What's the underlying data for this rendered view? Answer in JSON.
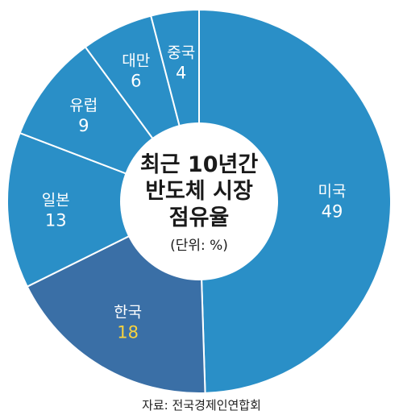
{
  "chart_data": {
    "type": "pie",
    "center_title": [
      "최근 10년간",
      "반도체 시장",
      "점유율"
    ],
    "center_unit": "(단위: %)",
    "slices": [
      {
        "label": "미국",
        "value": 49,
        "color": "#2a8fc7",
        "value_color": "#ffffff"
      },
      {
        "label": "한국",
        "value": 18,
        "color": "#3a6fa6",
        "value_color": "#f7d23e"
      },
      {
        "label": "일본",
        "value": 13,
        "color": "#2a8fc7",
        "value_color": "#ffffff"
      },
      {
        "label": "유럽",
        "value": 9,
        "color": "#2a8fc7",
        "value_color": "#ffffff"
      },
      {
        "label": "대만",
        "value": 6,
        "color": "#2a8fc7",
        "value_color": "#ffffff"
      },
      {
        "label": "중국",
        "value": 4,
        "color": "#2a8fc7",
        "value_color": "#ffffff"
      }
    ],
    "source": "자료: 전국경제인연합회"
  }
}
